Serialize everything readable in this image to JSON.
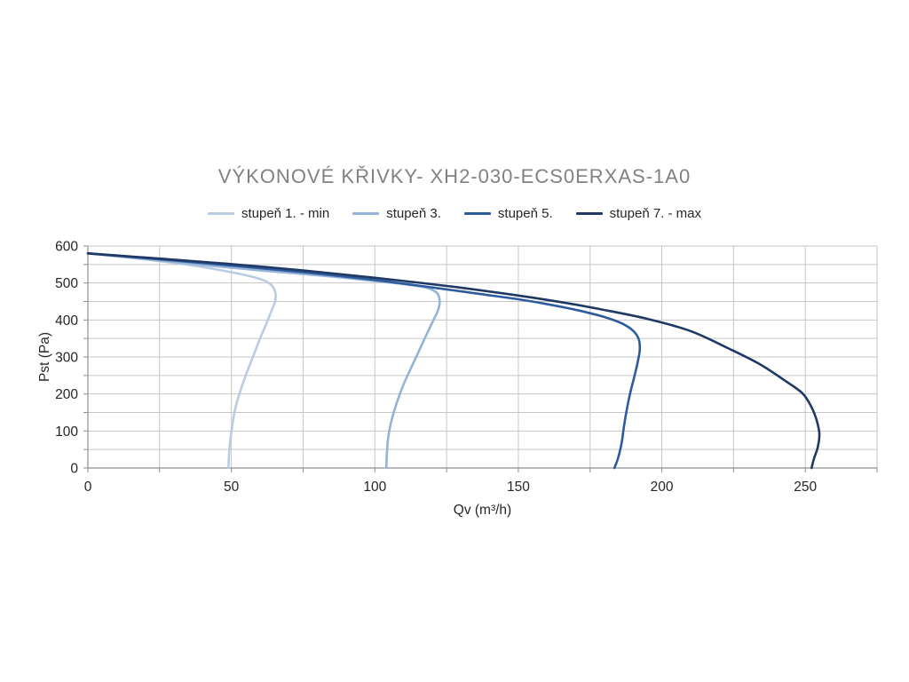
{
  "chart_data": {
    "type": "line",
    "title": "VÝKONOVÉ KŘIVKY- XH2-030-ECS0ERXAS-1A0",
    "title_color": "#818181",
    "xlabel": "Qv (m³/h)",
    "ylabel": "Pst (Pa)",
    "xlim": [
      0,
      275
    ],
    "ylim": [
      0,
      600
    ],
    "x_gridline_step": 25,
    "y_gridline_step": 50,
    "x_label_step": 50,
    "y_label_step": 100,
    "x_tick_labels": [
      "0",
      "50",
      "100",
      "150",
      "200",
      "250"
    ],
    "y_tick_labels": [
      "0",
      "100",
      "200",
      "300",
      "400",
      "500",
      "600"
    ],
    "grid": true,
    "legend_position": "top",
    "grid_color": "#c6c6c6",
    "axis_color": "#8e8e8e",
    "series": [
      {
        "name": "stupeň 1. - min",
        "color": "#b8cce4",
        "points": [
          [
            0,
            580
          ],
          [
            12,
            570
          ],
          [
            24,
            560
          ],
          [
            36,
            548
          ],
          [
            46,
            535
          ],
          [
            55,
            521
          ],
          [
            61,
            508
          ],
          [
            64,
            494
          ],
          [
            65.3,
            475
          ],
          [
            65.3,
            452
          ],
          [
            64,
            425
          ],
          [
            62.2,
            390
          ],
          [
            60,
            350
          ],
          [
            57.5,
            300
          ],
          [
            55,
            250
          ],
          [
            53,
            205
          ],
          [
            51.5,
            165
          ],
          [
            50.4,
            120
          ],
          [
            49.7,
            80
          ],
          [
            49.2,
            40
          ],
          [
            49,
            0
          ]
        ]
      },
      {
        "name": "stupeň 3.",
        "color": "#95b3d7",
        "points": [
          [
            0,
            580
          ],
          [
            20,
            565
          ],
          [
            40,
            549
          ],
          [
            60,
            534
          ],
          [
            78,
            522
          ],
          [
            92,
            512
          ],
          [
            103,
            503
          ],
          [
            112,
            495
          ],
          [
            118,
            487
          ],
          [
            121.5,
            474
          ],
          [
            122.6,
            452
          ],
          [
            122,
            426
          ],
          [
            120,
            393
          ],
          [
            117.5,
            352
          ],
          [
            115,
            310
          ],
          [
            112.3,
            265
          ],
          [
            109.8,
            222
          ],
          [
            107.6,
            175
          ],
          [
            105.8,
            128
          ],
          [
            104.7,
            85
          ],
          [
            104.2,
            42
          ],
          [
            104,
            0
          ]
        ]
      },
      {
        "name": "stupeň 5.",
        "color": "#2e5b9e",
        "points": [
          [
            0,
            580
          ],
          [
            25,
            564
          ],
          [
            50,
            547
          ],
          [
            75,
            529
          ],
          [
            100,
            508
          ],
          [
            120,
            488
          ],
          [
            135,
            472
          ],
          [
            150,
            456
          ],
          [
            162,
            440
          ],
          [
            172,
            424
          ],
          [
            180,
            408
          ],
          [
            186,
            391
          ],
          [
            190,
            371
          ],
          [
            192,
            347
          ],
          [
            192.3,
            318
          ],
          [
            191.5,
            283
          ],
          [
            190.3,
            243
          ],
          [
            189,
            203
          ],
          [
            187.8,
            158
          ],
          [
            186.8,
            112
          ],
          [
            186,
            68
          ],
          [
            184.8,
            28
          ],
          [
            183.5,
            0
          ]
        ]
      },
      {
        "name": "stupeň 7. - max",
        "color": "#1f3864",
        "points": [
          [
            0,
            580
          ],
          [
            25,
            566
          ],
          [
            50,
            551
          ],
          [
            75,
            534
          ],
          [
            100,
            514
          ],
          [
            125,
            492
          ],
          [
            150,
            466
          ],
          [
            165,
            448
          ],
          [
            180,
            427
          ],
          [
            195,
            403
          ],
          [
            210,
            370
          ],
          [
            223,
            324
          ],
          [
            234,
            281
          ],
          [
            243.5,
            233
          ],
          [
            249,
            202
          ],
          [
            251.8,
            170
          ],
          [
            253.6,
            138
          ],
          [
            254.7,
            105
          ],
          [
            254.9,
            85
          ],
          [
            254.2,
            52
          ],
          [
            253,
            25
          ],
          [
            252.2,
            0
          ]
        ]
      }
    ]
  }
}
